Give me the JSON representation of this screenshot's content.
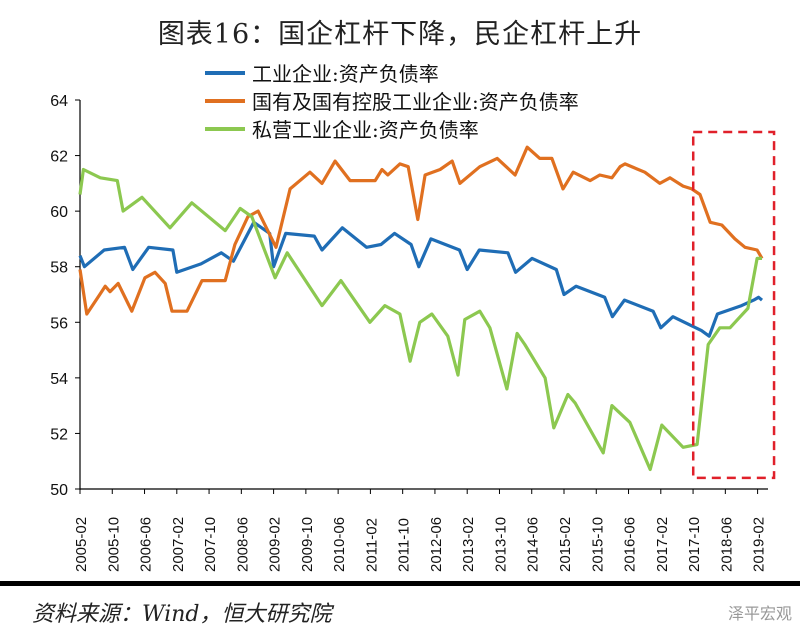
{
  "title": "图表16：国企杠杆下降，民企杠杆上升",
  "source": "资料来源：Wind，恒大研究院",
  "watermark": "泽平宏观",
  "chart_data": {
    "type": "line",
    "title": "图表16：国企杠杆下降，民企杠杆上升",
    "xlabel": "",
    "ylabel": "",
    "ylim": [
      50,
      64
    ],
    "yticks": [
      "50",
      "52",
      "54",
      "56",
      "58",
      "60",
      "62",
      "64"
    ],
    "xticks": [
      "2005-02",
      "2005-10",
      "2006-06",
      "2007-02",
      "2007-10",
      "2008-06",
      "2009-02",
      "2009-10",
      "2010-06",
      "2011-02",
      "2011-10",
      "2012-06",
      "2013-02",
      "2013-10",
      "2014-06",
      "2015-02",
      "2015-10",
      "2016-06",
      "2017-02",
      "2017-10",
      "2018-06",
      "2019-02"
    ],
    "xlim_years": [
      2005.08,
      2019.3
    ],
    "legend_position": "top",
    "highlight_box": {
      "from_year": 2017.75,
      "to_year": 2019.42,
      "ymin": 50.4,
      "ymax": 62.85,
      "color": "#e0202a"
    },
    "series": [
      {
        "name": "工业企业:资产负债率",
        "color": "#1f6db5",
        "points": [
          [
            2005.08,
            58.4
          ],
          [
            2005.17,
            58.0
          ],
          [
            2005.58,
            58.6
          ],
          [
            2006.0,
            58.7
          ],
          [
            2006.17,
            57.9
          ],
          [
            2006.5,
            58.7
          ],
          [
            2007.0,
            58.6
          ],
          [
            2007.08,
            57.8
          ],
          [
            2007.58,
            58.1
          ],
          [
            2008.0,
            58.5
          ],
          [
            2008.25,
            58.2
          ],
          [
            2008.67,
            59.6
          ],
          [
            2009.0,
            59.2
          ],
          [
            2009.08,
            58.0
          ],
          [
            2009.33,
            59.2
          ],
          [
            2009.92,
            59.1
          ],
          [
            2010.08,
            58.6
          ],
          [
            2010.5,
            59.4
          ],
          [
            2011.0,
            58.7
          ],
          [
            2011.3,
            58.8
          ],
          [
            2011.58,
            59.2
          ],
          [
            2011.92,
            58.8
          ],
          [
            2012.08,
            58.0
          ],
          [
            2012.33,
            59.0
          ],
          [
            2012.92,
            58.6
          ],
          [
            2013.08,
            57.9
          ],
          [
            2013.33,
            58.6
          ],
          [
            2013.92,
            58.5
          ],
          [
            2014.08,
            57.8
          ],
          [
            2014.42,
            58.3
          ],
          [
            2014.92,
            57.9
          ],
          [
            2015.08,
            57.0
          ],
          [
            2015.33,
            57.3
          ],
          [
            2015.92,
            56.9
          ],
          [
            2016.08,
            56.2
          ],
          [
            2016.33,
            56.8
          ],
          [
            2016.92,
            56.4
          ],
          [
            2017.08,
            55.8
          ],
          [
            2017.33,
            56.2
          ],
          [
            2017.92,
            55.7
          ],
          [
            2018.08,
            55.5
          ],
          [
            2018.25,
            56.3
          ],
          [
            2018.75,
            56.6
          ],
          [
            2019.0,
            56.8
          ],
          [
            2019.1,
            56.9
          ],
          [
            2019.17,
            56.8
          ]
        ]
      },
      {
        "name": "国有及国有控股工业企业:资产负债率",
        "color": "#e07020",
        "points": [
          [
            2005.08,
            57.9
          ],
          [
            2005.22,
            56.3
          ],
          [
            2005.49,
            57.0
          ],
          [
            2005.6,
            57.3
          ],
          [
            2005.7,
            57.1
          ],
          [
            2005.87,
            57.4
          ],
          [
            2006.15,
            56.4
          ],
          [
            2006.42,
            57.6
          ],
          [
            2006.63,
            57.8
          ],
          [
            2006.84,
            57.4
          ],
          [
            2006.98,
            56.4
          ],
          [
            2007.29,
            56.4
          ],
          [
            2007.6,
            57.5
          ],
          [
            2008.08,
            57.5
          ],
          [
            2008.28,
            58.8
          ],
          [
            2008.55,
            59.8
          ],
          [
            2008.76,
            60.0
          ],
          [
            2009.13,
            58.7
          ],
          [
            2009.42,
            60.8
          ],
          [
            2009.83,
            61.4
          ],
          [
            2010.08,
            61.0
          ],
          [
            2010.35,
            61.8
          ],
          [
            2010.66,
            61.1
          ],
          [
            2011.18,
            61.1
          ],
          [
            2011.32,
            61.5
          ],
          [
            2011.44,
            61.3
          ],
          [
            2011.69,
            61.7
          ],
          [
            2011.86,
            61.6
          ],
          [
            2012.06,
            59.7
          ],
          [
            2012.21,
            61.3
          ],
          [
            2012.52,
            61.5
          ],
          [
            2012.77,
            61.8
          ],
          [
            2012.93,
            61.0
          ],
          [
            2013.34,
            61.6
          ],
          [
            2013.7,
            61.9
          ],
          [
            2014.07,
            61.3
          ],
          [
            2014.32,
            62.3
          ],
          [
            2014.58,
            61.9
          ],
          [
            2014.83,
            61.9
          ],
          [
            2015.06,
            60.8
          ],
          [
            2015.27,
            61.4
          ],
          [
            2015.62,
            61.1
          ],
          [
            2015.82,
            61.3
          ],
          [
            2016.07,
            61.2
          ],
          [
            2016.24,
            61.6
          ],
          [
            2016.34,
            61.7
          ],
          [
            2016.75,
            61.4
          ],
          [
            2017.06,
            61.0
          ],
          [
            2017.27,
            61.2
          ],
          [
            2017.54,
            60.9
          ],
          [
            2017.72,
            60.8
          ],
          [
            2017.89,
            60.6
          ],
          [
            2018.1,
            59.6
          ],
          [
            2018.34,
            59.5
          ],
          [
            2018.61,
            59.0
          ],
          [
            2018.82,
            58.7
          ],
          [
            2019.07,
            58.6
          ],
          [
            2019.17,
            58.3
          ]
        ]
      },
      {
        "name": "私营工业企业:资产负债率",
        "color": "#8cc850",
        "points": [
          [
            2005.08,
            60.6
          ],
          [
            2005.15,
            61.5
          ],
          [
            2005.5,
            61.2
          ],
          [
            2005.85,
            61.1
          ],
          [
            2005.97,
            60.0
          ],
          [
            2006.36,
            60.5
          ],
          [
            2006.94,
            59.4
          ],
          [
            2007.39,
            60.3
          ],
          [
            2008.08,
            59.3
          ],
          [
            2008.39,
            60.1
          ],
          [
            2008.63,
            59.8
          ],
          [
            2009.11,
            57.6
          ],
          [
            2009.36,
            58.5
          ],
          [
            2010.08,
            56.6
          ],
          [
            2010.47,
            57.5
          ],
          [
            2011.07,
            56.0
          ],
          [
            2011.38,
            56.6
          ],
          [
            2011.69,
            56.3
          ],
          [
            2011.9,
            54.6
          ],
          [
            2012.1,
            56.0
          ],
          [
            2012.35,
            56.3
          ],
          [
            2012.68,
            55.5
          ],
          [
            2012.89,
            54.1
          ],
          [
            2013.03,
            56.1
          ],
          [
            2013.34,
            56.4
          ],
          [
            2013.55,
            55.8
          ],
          [
            2013.9,
            53.6
          ],
          [
            2014.11,
            55.6
          ],
          [
            2014.27,
            55.2
          ],
          [
            2014.69,
            54.0
          ],
          [
            2014.87,
            52.2
          ],
          [
            2015.16,
            53.4
          ],
          [
            2015.31,
            53.1
          ],
          [
            2015.89,
            51.3
          ],
          [
            2016.07,
            53.0
          ],
          [
            2016.44,
            52.4
          ],
          [
            2016.86,
            50.7
          ],
          [
            2017.1,
            52.3
          ],
          [
            2017.54,
            51.5
          ],
          [
            2017.83,
            51.6
          ],
          [
            2018.06,
            55.2
          ],
          [
            2018.3,
            55.8
          ],
          [
            2018.51,
            55.8
          ],
          [
            2018.72,
            56.2
          ],
          [
            2018.88,
            56.5
          ],
          [
            2019.07,
            58.3
          ],
          [
            2019.17,
            58.3
          ]
        ]
      }
    ]
  }
}
